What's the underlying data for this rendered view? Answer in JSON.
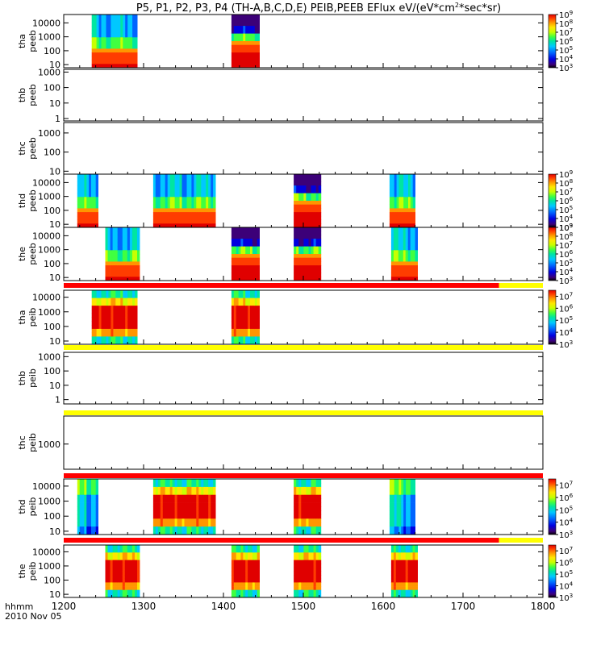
{
  "title_main": "P5, P1, P2, P3, P4 (TH-A,B,C,D,E) PEIB,PEEB EFlux eV/(eV*cm",
  "title_sup": "2",
  "title_end": "*sec*sr)",
  "colors": {
    "spectrum": [
      "#ffffff",
      "#3c0078",
      "#0000e0",
      "#0064ff",
      "#00c8ff",
      "#00e6a0",
      "#40ff40",
      "#c8ff00",
      "#ffe600",
      "#ff9600",
      "#ff3c00",
      "#e00000"
    ],
    "bar_red": "#ff0000",
    "bar_yellow": "#ffff00",
    "axis": "#000000"
  },
  "chart_data": {
    "type": "heatmap",
    "x_axis": {
      "range": [
        1200,
        1800
      ],
      "ticks": [
        "1200",
        "1300",
        "1400",
        "1500",
        "1600",
        "1700",
        "1800"
      ],
      "corner_label": "hhmm",
      "date_label": "2010 Nov 05"
    },
    "panels": [
      {
        "id": "tha-peeb",
        "label_top": "tha",
        "label_bot": "peeb",
        "scale": "log",
        "yticks": [
          "10",
          "100",
          "1000",
          "10000"
        ],
        "ylim": [
          6,
          40000
        ],
        "colorbar": {
          "min_exp": 3,
          "max_exp": 9,
          "labels": [
            {
              "base": "10",
              "exp": "9"
            },
            {
              "base": "10",
              "exp": "8"
            },
            {
              "base": "10",
              "exp": "7"
            },
            {
              "base": "10",
              "exp": "6"
            },
            {
              "base": "10",
              "exp": "5"
            },
            {
              "base": "10",
              "exp": "4"
            },
            {
              "base": "10",
              "exp": "3"
            }
          ]
        },
        "blocks": [
          {
            "x0": 1235,
            "x1": 1292,
            "style": "electron"
          },
          {
            "x0": 1410,
            "x1": 1445,
            "style": "electron-hot"
          }
        ]
      },
      {
        "id": "thb-peeb",
        "label_top": "thb",
        "label_bot": "peeb",
        "scale": "log",
        "yticks": [
          "1",
          "10",
          "100",
          "1000"
        ],
        "ylim": [
          0.7,
          1500
        ],
        "blocks": []
      },
      {
        "id": "thc-peeb",
        "label_top": "thc",
        "label_bot": "peeb",
        "scale": "log",
        "yticks": [
          "10",
          "100",
          "1000"
        ],
        "ylim": [
          7,
          3500
        ],
        "blocks": []
      },
      {
        "id": "thd-peeb",
        "label_top": "thd",
        "label_bot": "peeb",
        "scale": "log",
        "yticks": [
          "10",
          "100",
          "1000",
          "10000"
        ],
        "ylim": [
          6,
          40000
        ],
        "colorbar": {
          "min_exp": 3,
          "max_exp": 9,
          "labels": [
            {
              "base": "10",
              "exp": "9"
            },
            {
              "base": "10",
              "exp": "8"
            },
            {
              "base": "10",
              "exp": "7"
            },
            {
              "base": "10",
              "exp": "6"
            },
            {
              "base": "10",
              "exp": "5"
            },
            {
              "base": "10",
              "exp": "4"
            },
            {
              "base": "10",
              "exp": "3"
            }
          ]
        },
        "blocks": [
          {
            "x0": 1217,
            "x1": 1243,
            "style": "electron"
          },
          {
            "x0": 1312,
            "x1": 1390,
            "style": "electron"
          },
          {
            "x0": 1488,
            "x1": 1522,
            "style": "electron-hot"
          },
          {
            "x0": 1608,
            "x1": 1640,
            "style": "electron"
          }
        ]
      },
      {
        "id": "the-peeb",
        "label_top": "the",
        "label_bot": "peeb",
        "scale": "log",
        "yticks": [
          "10",
          "100",
          "1000",
          "10000"
        ],
        "ylim": [
          6,
          40000
        ],
        "colorbar": {
          "min_exp": 3,
          "max_exp": 9,
          "labels": [
            {
              "base": "10",
              "exp": "9"
            },
            {
              "base": "10",
              "exp": "8"
            },
            {
              "base": "10",
              "exp": "7"
            },
            {
              "base": "10",
              "exp": "6"
            },
            {
              "base": "10",
              "exp": "5"
            },
            {
              "base": "10",
              "exp": "4"
            },
            {
              "base": "10",
              "exp": "3"
            }
          ]
        },
        "blocks": [
          {
            "x0": 1252,
            "x1": 1295,
            "style": "electron"
          },
          {
            "x0": 1410,
            "x1": 1445,
            "style": "electron-hot"
          },
          {
            "x0": 1488,
            "x1": 1522,
            "style": "electron-hot"
          },
          {
            "x0": 1610,
            "x1": 1643,
            "style": "electron"
          }
        ]
      },
      {
        "id": "tha-peib",
        "label_top": "tha",
        "label_bot": "peib",
        "scale": "log",
        "yticks": [
          "10",
          "100",
          "1000",
          "10000"
        ],
        "ylim": [
          6,
          30000
        ],
        "bar": [
          {
            "x0": 1200,
            "x1": 1745,
            "color": "red"
          },
          {
            "x0": 1745,
            "x1": 1800,
            "color": "yellow"
          }
        ],
        "colorbar": {
          "min_exp": 3,
          "max_exp": 7.5,
          "labels": [
            {
              "base": "10",
              "exp": "7"
            },
            {
              "base": "10",
              "exp": "6"
            },
            {
              "base": "10",
              "exp": "5"
            },
            {
              "base": "10",
              "exp": "4"
            },
            {
              "base": "10",
              "exp": "3"
            }
          ]
        },
        "blocks": [
          {
            "x0": 1235,
            "x1": 1292,
            "style": "ion"
          },
          {
            "x0": 1410,
            "x1": 1445,
            "style": "ion"
          }
        ]
      },
      {
        "id": "thb-peib",
        "label_top": "thb",
        "label_bot": "peib",
        "scale": "log",
        "yticks": [
          "1",
          "10",
          "100",
          "1000"
        ],
        "ylim": [
          0.5,
          2000
        ],
        "bar": [
          {
            "x0": 1200,
            "x1": 1800,
            "color": "yellow"
          }
        ],
        "blocks": []
      },
      {
        "id": "thc-peib",
        "label_top": "thc",
        "label_bot": "peib",
        "scale": "log",
        "yticks": [
          "1000"
        ],
        "ylim": [
          200,
          6000
        ],
        "bar": [
          {
            "x0": 1200,
            "x1": 1800,
            "color": "yellow"
          }
        ],
        "blocks": []
      },
      {
        "id": "thd-peib",
        "label_top": "thd",
        "label_bot": "peib",
        "scale": "log",
        "yticks": [
          "10",
          "100",
          "1000",
          "10000"
        ],
        "ylim": [
          6,
          30000
        ],
        "bar": [
          {
            "x0": 1200,
            "x1": 1800,
            "color": "red"
          }
        ],
        "colorbar": {
          "min_exp": 3,
          "max_exp": 7.5,
          "labels": [
            {
              "base": "10",
              "exp": "7"
            },
            {
              "base": "10",
              "exp": "6"
            },
            {
              "base": "10",
              "exp": "5"
            },
            {
              "base": "10",
              "exp": "4"
            },
            {
              "base": "10",
              "exp": "3"
            }
          ]
        },
        "blocks": [
          {
            "x0": 1217,
            "x1": 1243,
            "style": "ion-cool"
          },
          {
            "x0": 1312,
            "x1": 1390,
            "style": "ion"
          },
          {
            "x0": 1488,
            "x1": 1522,
            "style": "ion"
          },
          {
            "x0": 1608,
            "x1": 1640,
            "style": "ion-cool"
          }
        ]
      },
      {
        "id": "the-peib",
        "label_top": "the",
        "label_bot": "peib",
        "scale": "log",
        "yticks": [
          "10",
          "100",
          "1000",
          "10000"
        ],
        "ylim": [
          6,
          30000
        ],
        "bar": [
          {
            "x0": 1200,
            "x1": 1745,
            "color": "red"
          },
          {
            "x0": 1745,
            "x1": 1800,
            "color": "yellow"
          }
        ],
        "colorbar": {
          "min_exp": 3,
          "max_exp": 7.5,
          "labels": [
            {
              "base": "10",
              "exp": "7"
            },
            {
              "base": "10",
              "exp": "6"
            },
            {
              "base": "10",
              "exp": "5"
            },
            {
              "base": "10",
              "exp": "4"
            },
            {
              "base": "10",
              "exp": "3"
            }
          ]
        },
        "blocks": [
          {
            "x0": 1252,
            "x1": 1295,
            "style": "ion"
          },
          {
            "x0": 1410,
            "x1": 1445,
            "style": "ion"
          },
          {
            "x0": 1488,
            "x1": 1522,
            "style": "ion"
          },
          {
            "x0": 1610,
            "x1": 1643,
            "style": "ion"
          }
        ]
      }
    ]
  }
}
